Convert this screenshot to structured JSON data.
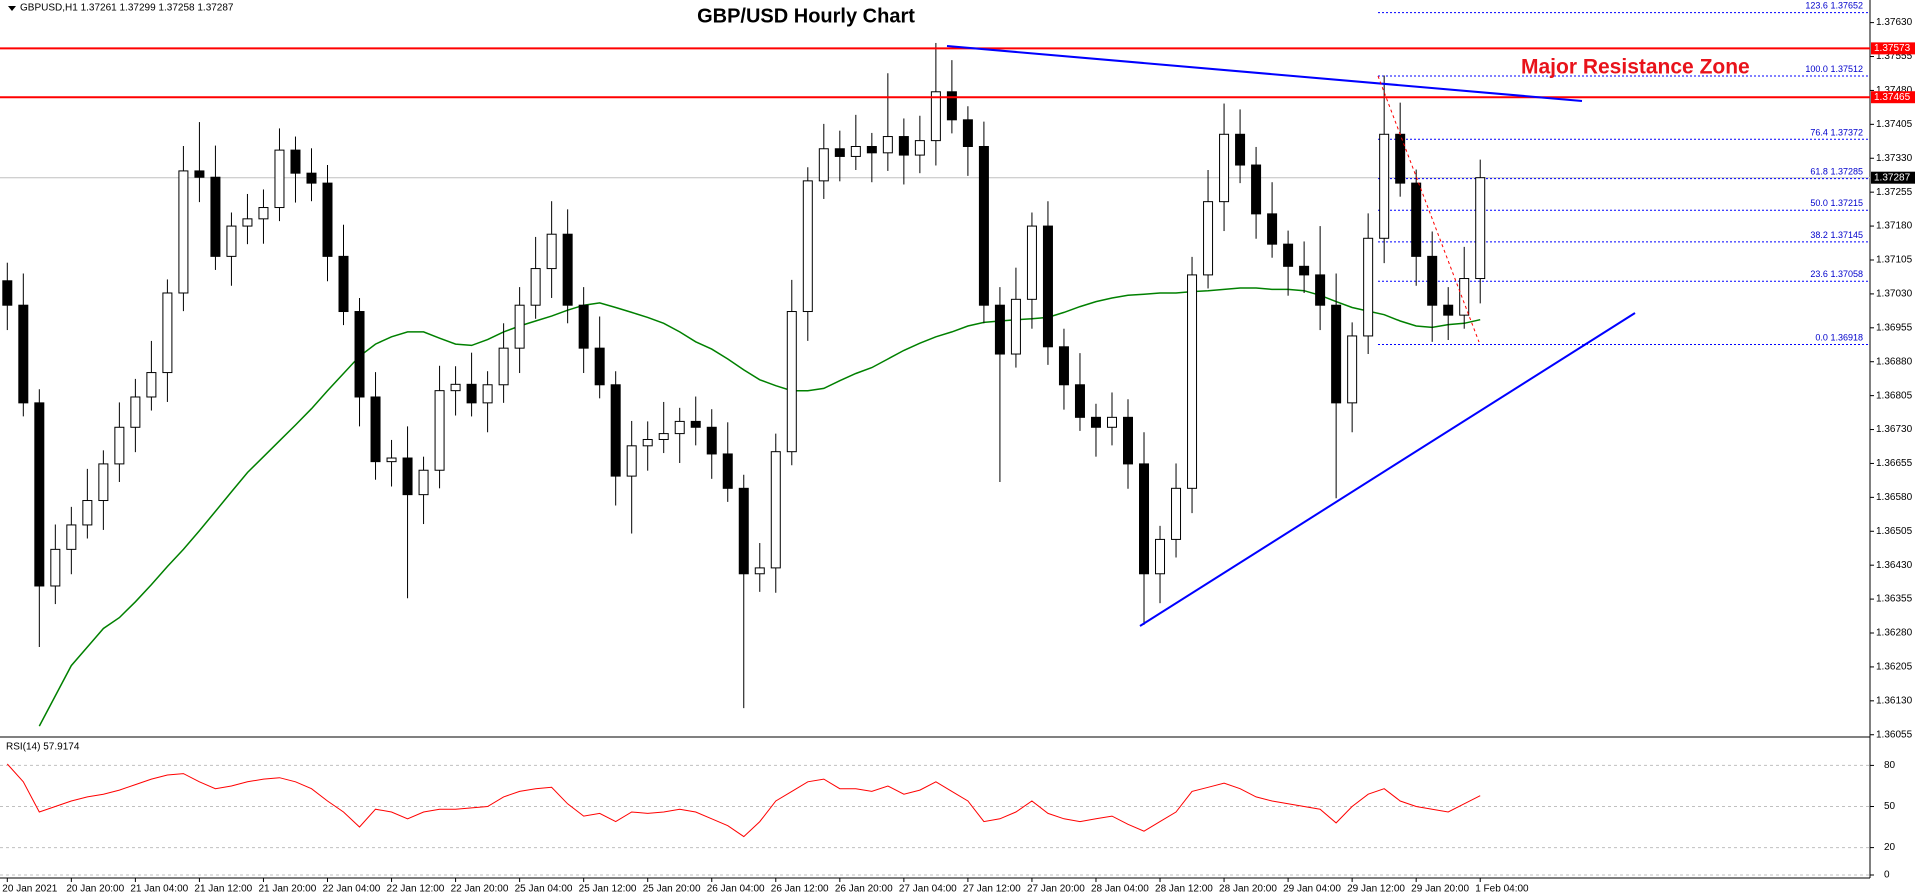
{
  "chart_data": {
    "type": "candlestick",
    "title": "GBP/USD Hourly Chart",
    "symbol_info": "GBPUSD,H1  1.37261 1.37299 1.37258 1.37287",
    "annotation": "Major Resistance Zone",
    "categories": [
      "20 Jan 2021",
      null,
      null,
      null,
      "20 Jan 20:00",
      null,
      null,
      null,
      "21 Jan 04:00",
      null,
      null,
      null,
      "21 Jan 12:00",
      null,
      null,
      null,
      "21 Jan 20:00",
      null,
      null,
      null,
      "22 Jan 04:00",
      null,
      null,
      null,
      "22 Jan 12:00",
      null,
      null,
      null,
      "22 Jan 20:00",
      null,
      null,
      null,
      "25 Jan 04:00",
      null,
      null,
      null,
      "25 Jan 12:00",
      null,
      null,
      null,
      "25 Jan 20:00",
      null,
      null,
      null,
      "26 Jan 04:00",
      null,
      null,
      null,
      "26 Jan 12:00",
      null,
      null,
      null,
      "26 Jan 20:00",
      null,
      null,
      null,
      "27 Jan 04:00",
      null,
      null,
      null,
      "27 Jan 12:00",
      null,
      null,
      null,
      "27 Jan 20:00",
      null,
      null,
      null,
      "28 Jan 04:00",
      null,
      null,
      null,
      "28 Jan 12:00",
      null,
      null,
      null,
      "28 Jan 20:00",
      null,
      null,
      null,
      "29 Jan 04:00",
      null,
      null,
      null,
      "29 Jan 12:00",
      null,
      null,
      null,
      "29 Jan 20:00",
      null,
      null,
      null,
      "1 Feb 04:00"
    ],
    "open": [
      1.37059,
      1.37005,
      1.36789,
      1.36384,
      1.36465,
      1.36519,
      1.36573,
      1.36654,
      1.36735,
      1.36802,
      1.36856,
      1.37032,
      1.37302,
      1.37288,
      1.37113,
      1.3718,
      1.37196,
      1.37221,
      1.37348,
      1.37297,
      1.37275,
      1.37113,
      1.36991,
      1.36802,
      1.36659,
      1.36667,
      1.36586,
      1.3664,
      1.36816,
      1.3683,
      1.36789,
      1.36829,
      1.3691,
      1.37005,
      1.37086,
      1.37162,
      1.37005,
      1.3691,
      1.36829,
      1.36627,
      1.36694,
      1.36708,
      1.36721,
      1.36748,
      1.36735,
      1.36676,
      1.366,
      1.36411,
      1.36424,
      1.36681,
      1.36991,
      1.3728,
      1.37351,
      1.37334,
      1.37356,
      1.37342,
      1.37378,
      1.37337,
      1.37369,
      1.37477,
      1.37415,
      1.37356,
      1.37005,
      1.36897,
      1.37018,
      1.3718,
      1.36913,
      1.36829,
      1.36757,
      1.36735,
      1.36757,
      1.36654,
      1.36411,
      1.36487,
      1.366,
      1.37072,
      1.37234,
      1.37383,
      1.37315,
      1.37207,
      1.3714,
      1.37091,
      1.37072,
      1.37005,
      1.36789,
      1.36937,
      1.37153,
      1.37383,
      1.37275,
      1.37113,
      1.37005,
      1.36983,
      1.37064
    ],
    "high": [
      1.37099,
      1.37075,
      1.36819,
      1.3652,
      1.36559,
      1.36643,
      1.36684,
      1.3679,
      1.36842,
      1.36926,
      1.37062,
      1.37357,
      1.3741,
      1.37358,
      1.3721,
      1.37251,
      1.37261,
      1.37396,
      1.37378,
      1.37352,
      1.37315,
      1.37183,
      1.37021,
      1.36857,
      1.36707,
      1.36737,
      1.3667,
      1.36871,
      1.3687,
      1.369,
      1.36859,
      1.36965,
      1.37045,
      1.37156,
      1.37235,
      1.37217,
      1.37045,
      1.3698,
      1.36859,
      1.36749,
      1.36748,
      1.36791,
      1.36778,
      1.36803,
      1.36775,
      1.36746,
      1.3663,
      1.36479,
      1.36721,
      1.37061,
      1.3731,
      1.37406,
      1.37391,
      1.37426,
      1.37386,
      1.37518,
      1.37418,
      1.37424,
      1.37585,
      1.37547,
      1.37445,
      1.37411,
      1.37045,
      1.37088,
      1.3721,
      1.37235,
      1.36953,
      1.36899,
      1.36787,
      1.36812,
      1.36797,
      1.36724,
      1.36517,
      1.36655,
      1.37112,
      1.37304,
      1.37451,
      1.37438,
      1.37355,
      1.37277,
      1.3717,
      1.37146,
      1.3718,
      1.37075,
      1.36967,
      1.37208,
      1.37513,
      1.37453,
      1.37305,
      1.37168,
      1.37045,
      1.37134,
      1.37327
    ],
    "low": [
      1.3695,
      1.36759,
      1.36249,
      1.36344,
      1.3641,
      1.36489,
      1.36508,
      1.36614,
      1.3668,
      1.36772,
      1.36791,
      1.36992,
      1.37233,
      1.37083,
      1.37048,
      1.3714,
      1.37141,
      1.37191,
      1.37232,
      1.37235,
      1.37058,
      1.36961,
      1.36737,
      1.36619,
      1.36604,
      1.36357,
      1.36521,
      1.366,
      1.36761,
      1.36759,
      1.36724,
      1.36789,
      1.36855,
      1.36975,
      1.37021,
      1.36965,
      1.36855,
      1.36799,
      1.36562,
      1.365,
      1.36639,
      1.36678,
      1.36656,
      1.36695,
      1.36621,
      1.3657,
      1.36114,
      1.36371,
      1.36369,
      1.36651,
      1.36926,
      1.3724,
      1.37279,
      1.37304,
      1.37277,
      1.37302,
      1.37272,
      1.37297,
      1.37314,
      1.37385,
      1.37291,
      1.36965,
      1.36614,
      1.36867,
      1.36953,
      1.36873,
      1.36774,
      1.36727,
      1.3667,
      1.36695,
      1.36599,
      1.36298,
      1.36346,
      1.36447,
      1.36545,
      1.37042,
      1.37169,
      1.37275,
      1.37152,
      1.3711,
      1.37026,
      1.37032,
      1.3695,
      1.36578,
      1.36724,
      1.36897,
      1.37098,
      1.37245,
      1.37048,
      1.36924,
      1.36928,
      1.36953,
      1.37009
    ],
    "close": [
      1.37005,
      1.36789,
      1.36384,
      1.36465,
      1.36519,
      1.36573,
      1.36654,
      1.36735,
      1.36802,
      1.36856,
      1.37032,
      1.37302,
      1.37288,
      1.37113,
      1.3718,
      1.37196,
      1.37221,
      1.37348,
      1.37297,
      1.37275,
      1.37113,
      1.36991,
      1.36802,
      1.36659,
      1.36667,
      1.36586,
      1.3664,
      1.36816,
      1.3683,
      1.36789,
      1.36829,
      1.3691,
      1.37005,
      1.37086,
      1.37162,
      1.37005,
      1.3691,
      1.36829,
      1.36627,
      1.36694,
      1.36708,
      1.36721,
      1.36748,
      1.36735,
      1.36676,
      1.366,
      1.36411,
      1.36424,
      1.36681,
      1.36991,
      1.3728,
      1.37351,
      1.37334,
      1.37356,
      1.37342,
      1.37378,
      1.37337,
      1.37369,
      1.37477,
      1.37415,
      1.37356,
      1.37005,
      1.36897,
      1.37018,
      1.3718,
      1.36913,
      1.36829,
      1.36757,
      1.36735,
      1.36757,
      1.36654,
      1.36411,
      1.36487,
      1.366,
      1.37072,
      1.37234,
      1.37383,
      1.37315,
      1.37207,
      1.3714,
      1.37091,
      1.37072,
      1.37005,
      1.36789,
      1.36937,
      1.37153,
      1.37383,
      1.37275,
      1.37113,
      1.37005,
      1.36983,
      1.37064,
      1.37287
    ],
    "moving_average": {
      "color": "#008000",
      "values": [
        null,
        null,
        1.36074,
        1.36141,
        1.36208,
        1.36249,
        1.3629,
        1.36314,
        1.36349,
        1.36387,
        1.36427,
        1.36465,
        1.36506,
        1.36549,
        1.36592,
        1.36635,
        1.3667,
        1.36705,
        1.3674,
        1.36776,
        1.36816,
        1.36854,
        1.36892,
        1.36919,
        1.36935,
        1.36946,
        1.36946,
        1.36932,
        1.36919,
        1.36916,
        1.36929,
        1.36946,
        1.36959,
        1.3697,
        1.36981,
        1.36994,
        1.37005,
        1.3701,
        1.37,
        1.36989,
        1.36978,
        1.36965,
        1.36946,
        1.36924,
        1.36908,
        1.36886,
        1.36862,
        1.3684,
        1.36827,
        1.36816,
        1.36816,
        1.36821,
        1.36838,
        1.36854,
        1.36867,
        1.36886,
        1.36905,
        1.36921,
        1.36935,
        1.36946,
        1.36959,
        1.36967,
        1.3697,
        1.36973,
        1.36975,
        1.36978,
        1.36989,
        1.37002,
        1.37013,
        1.37021,
        1.37027,
        1.37029,
        1.37032,
        1.37032,
        1.37035,
        1.37037,
        1.3704,
        1.37043,
        1.37043,
        1.3704,
        1.3704,
        1.37037,
        1.37027,
        1.37013,
        1.37,
        1.36992,
        1.36984,
        1.3697,
        1.36959,
        1.36956,
        1.36962,
        1.36965,
        1.36973
      ]
    },
    "resistance_lines": {
      "color": "#ff0000",
      "values": [
        1.37573,
        1.37465
      ]
    },
    "last_price": 1.37287,
    "fibonacci": [
      {
        "ratio": "123.6",
        "price": 1.37652
      },
      {
        "ratio": "100.0",
        "price": 1.37512
      },
      {
        "ratio": "76.4",
        "price": 1.37372
      },
      {
        "ratio": "61.8",
        "price": 1.37285
      },
      {
        "ratio": "50.0",
        "price": 1.37215
      },
      {
        "ratio": "38.2",
        "price": 1.37145
      },
      {
        "ratio": "23.6",
        "price": 1.37058
      },
      {
        "ratio": "0.0",
        "price": 1.36918
      }
    ],
    "ylim": [
      1.3605,
      1.3768
    ],
    "yticks": [
      {
        "value": 1.3763,
        "label": "1.37630"
      },
      1.37555,
      {
        "value": 1.3748,
        "label": "1.37480"
      },
      1.37405,
      {
        "value": 1.3733,
        "label": "1.37330"
      },
      1.37255,
      {
        "value": 1.3718,
        "label": "1.37180"
      },
      1.37105,
      {
        "value": 1.3703,
        "label": "1.37030"
      },
      1.36955,
      {
        "value": 1.3688,
        "label": "1.36880"
      },
      1.36805,
      {
        "value": 1.3673,
        "label": "1.36730"
      },
      1.36655,
      {
        "value": 1.3658,
        "label": "1.36580"
      },
      1.36505,
      {
        "value": 1.3643,
        "label": "1.36430"
      },
      1.36355,
      {
        "value": 1.3628,
        "label": "1.36280"
      },
      1.36205,
      {
        "value": 1.3613,
        "label": "1.36130"
      },
      1.36055
    ],
    "rsi": {
      "label": "RSI(14) 57.9174",
      "color": "#ff0000",
      "values": [
        81,
        68,
        46,
        50,
        54,
        57,
        59,
        62,
        66,
        70,
        73,
        74,
        68,
        63,
        65,
        68,
        70,
        71,
        68,
        63,
        54,
        46,
        35,
        48,
        46,
        41,
        46,
        48,
        48,
        49,
        50,
        57,
        61,
        63,
        64,
        52,
        43,
        45,
        39,
        46,
        45,
        46,
        48,
        46,
        41,
        36,
        28,
        39,
        54,
        61,
        68,
        70,
        63,
        63,
        61,
        65,
        59,
        62,
        68,
        61,
        54,
        39,
        41,
        46,
        54,
        45,
        41,
        39,
        41,
        43,
        37,
        32,
        39,
        46,
        61,
        64,
        67,
        63,
        57,
        54,
        52,
        50,
        48,
        38,
        50,
        59,
        63,
        54,
        50,
        48,
        46,
        52,
        57.9174
      ],
      "ylim": [
        0,
        100
      ],
      "yticks": [
        0,
        20,
        50,
        80
      ]
    }
  }
}
